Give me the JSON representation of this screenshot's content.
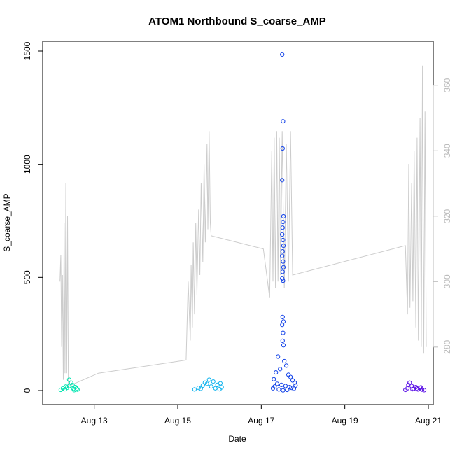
{
  "chart_data": {
    "type": "scatter",
    "title": "ATOM1 Northbound S_coarse_AMP",
    "xlabel": "Date",
    "ylabel": "S_coarse_AMP",
    "x_ticks": [
      "Aug 13",
      "Aug 15",
      "Aug 17",
      "Aug 19",
      "Aug 21"
    ],
    "x_tick_positions": [
      13,
      15,
      17,
      19,
      21
    ],
    "xlim": [
      12.0,
      21.0
    ],
    "ylim": [
      0,
      1500
    ],
    "y_ticks": [
      0,
      500,
      1000,
      1500
    ],
    "y2_ticks": [
      280,
      300,
      320,
      340,
      360
    ],
    "y2lim": [
      262,
      370
    ],
    "line_color": "#cccccc",
    "right_axis_color": "#bbbbbb",
    "grid": false,
    "legend": "none",
    "scatter_series": [
      {
        "color": "#00e5b0",
        "points": [
          [
            12.2,
            3
          ],
          [
            12.3,
            6
          ],
          [
            12.35,
            12
          ],
          [
            12.4,
            20
          ],
          [
            12.45,
            35
          ],
          [
            12.5,
            8
          ],
          [
            12.55,
            15
          ],
          [
            12.6,
            4
          ],
          [
            12.4,
            48
          ],
          [
            12.48,
            25
          ],
          [
            12.52,
            2
          ],
          [
            12.25,
            10
          ],
          [
            12.32,
            18
          ],
          [
            12.58,
            9
          ]
        ]
      },
      {
        "color": "#0fb3ee",
        "points": [
          [
            15.4,
            5
          ],
          [
            15.5,
            12
          ],
          [
            15.6,
            22
          ],
          [
            15.7,
            30
          ],
          [
            15.8,
            18
          ],
          [
            15.85,
            40
          ],
          [
            15.9,
            10
          ],
          [
            15.95,
            25
          ],
          [
            16.0,
            6
          ],
          [
            16.05,
            14
          ],
          [
            15.75,
            48
          ],
          [
            15.65,
            35
          ],
          [
            15.55,
            8
          ],
          [
            16.02,
            32
          ]
        ]
      },
      {
        "color": "#1141e8",
        "points": [
          [
            17.5,
            1485
          ],
          [
            17.52,
            1190
          ],
          [
            17.51,
            1070
          ],
          [
            17.5,
            930
          ],
          [
            17.53,
            770
          ],
          [
            17.52,
            745
          ],
          [
            17.51,
            720
          ],
          [
            17.5,
            690
          ],
          [
            17.52,
            665
          ],
          [
            17.53,
            640
          ],
          [
            17.51,
            615
          ],
          [
            17.5,
            595
          ],
          [
            17.52,
            570
          ],
          [
            17.53,
            545
          ],
          [
            17.51,
            525
          ],
          [
            17.5,
            495
          ],
          [
            17.52,
            485
          ],
          [
            17.51,
            325
          ],
          [
            17.53,
            305
          ],
          [
            17.5,
            290
          ],
          [
            17.52,
            255
          ],
          [
            17.51,
            220
          ],
          [
            17.53,
            200
          ],
          [
            17.4,
            150
          ],
          [
            17.55,
            130
          ],
          [
            17.6,
            110
          ],
          [
            17.45,
            95
          ],
          [
            17.35,
            80
          ],
          [
            17.65,
            70
          ],
          [
            17.7,
            60
          ],
          [
            17.3,
            50
          ],
          [
            17.75,
            45
          ],
          [
            17.8,
            35
          ],
          [
            17.38,
            30
          ],
          [
            17.48,
            25
          ],
          [
            17.58,
            20
          ],
          [
            17.68,
            15
          ],
          [
            17.28,
            10
          ],
          [
            17.78,
            8
          ],
          [
            17.42,
            5
          ],
          [
            17.62,
            3
          ],
          [
            17.52,
            1
          ],
          [
            17.72,
            12
          ],
          [
            17.32,
            18
          ],
          [
            17.82,
            22
          ]
        ]
      },
      {
        "color": "#5b12e6",
        "points": [
          [
            20.45,
            3
          ],
          [
            20.5,
            10
          ],
          [
            20.55,
            35
          ],
          [
            20.6,
            20
          ],
          [
            20.65,
            8
          ],
          [
            20.7,
            15
          ],
          [
            20.75,
            5
          ],
          [
            20.8,
            12
          ],
          [
            20.85,
            4
          ],
          [
            20.9,
            2
          ],
          [
            20.52,
            25
          ],
          [
            20.62,
            6
          ],
          [
            20.72,
            9
          ],
          [
            20.82,
            14
          ]
        ]
      }
    ],
    "line_series": {
      "points": [
        [
          12.18,
          300
        ],
        [
          12.2,
          308
        ],
        [
          12.22,
          280
        ],
        [
          12.24,
          302
        ],
        [
          12.26,
          270
        ],
        [
          12.28,
          318
        ],
        [
          12.3,
          272
        ],
        [
          12.32,
          330
        ],
        [
          12.34,
          272
        ],
        [
          12.36,
          320
        ],
        [
          12.38,
          268
        ],
        [
          13.1,
          272
        ],
        [
          15.2,
          276
        ],
        [
          15.25,
          300
        ],
        [
          15.3,
          282
        ],
        [
          15.32,
          305
        ],
        [
          15.35,
          286
        ],
        [
          15.37,
          312
        ],
        [
          15.4,
          290
        ],
        [
          15.43,
          318
        ],
        [
          15.46,
          296
        ],
        [
          15.5,
          322
        ],
        [
          15.53,
          302
        ],
        [
          15.56,
          330
        ],
        [
          15.6,
          306
        ],
        [
          15.63,
          336
        ],
        [
          15.66,
          312
        ],
        [
          15.7,
          342
        ],
        [
          15.72,
          316
        ],
        [
          15.75,
          346
        ],
        [
          15.78,
          318
        ],
        [
          15.8,
          314
        ],
        [
          17.05,
          310
        ],
        [
          17.2,
          295
        ],
        [
          17.25,
          340
        ],
        [
          17.28,
          300
        ],
        [
          17.31,
          344
        ],
        [
          17.34,
          298
        ],
        [
          17.37,
          346
        ],
        [
          17.4,
          300
        ],
        [
          17.43,
          344
        ],
        [
          17.46,
          302
        ],
        [
          17.5,
          346
        ],
        [
          17.55,
          298
        ],
        [
          17.6,
          342
        ],
        [
          17.65,
          300
        ],
        [
          17.7,
          346
        ],
        [
          17.75,
          302
        ],
        [
          20.45,
          311
        ],
        [
          20.5,
          290
        ],
        [
          20.53,
          336
        ],
        [
          20.56,
          292
        ],
        [
          20.6,
          330
        ],
        [
          20.63,
          294
        ],
        [
          20.66,
          340
        ],
        [
          20.7,
          286
        ],
        [
          20.73,
          344
        ],
        [
          20.76,
          282
        ],
        [
          20.8,
          350
        ],
        [
          20.83,
          280
        ],
        [
          20.86,
          366
        ],
        [
          20.89,
          278
        ],
        [
          20.92,
          352
        ],
        [
          20.95,
          280
        ]
      ]
    }
  }
}
